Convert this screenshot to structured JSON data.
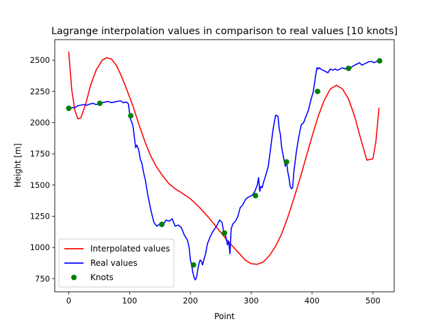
{
  "chart_data": {
    "type": "line",
    "title": "Lagrange interpolation values in comparison to real values [10 knots]",
    "xlabel": "Point",
    "ylabel": "Height [m]",
    "xlim": [
      -23,
      535
    ],
    "ylim": [
      645,
      2665
    ],
    "x_ticks": [
      0,
      100,
      200,
      300,
      400,
      500
    ],
    "y_ticks": [
      750,
      1000,
      1250,
      1500,
      1750,
      2000,
      2250,
      2500
    ],
    "legend_position": "lower-left",
    "series": [
      {
        "name": "Interpolated values",
        "color": "#ff0000",
        "style": "line",
        "x": [
          0,
          5,
          10,
          15,
          20,
          28,
          36,
          45,
          55,
          62,
          70,
          78,
          86,
          95,
          105,
          115,
          125,
          135,
          145,
          155,
          165,
          175,
          185,
          200,
          215,
          230,
          245,
          260,
          275,
          290,
          300,
          310,
          320,
          330,
          340,
          350,
          360,
          370,
          380,
          390,
          400,
          410,
          420,
          430,
          440,
          450,
          460,
          470,
          480,
          490,
          500,
          505,
          510
        ],
        "y": [
          2570,
          2260,
          2100,
          2030,
          2040,
          2150,
          2300,
          2420,
          2500,
          2520,
          2510,
          2460,
          2380,
          2270,
          2140,
          1990,
          1850,
          1730,
          1640,
          1570,
          1510,
          1470,
          1440,
          1390,
          1320,
          1240,
          1150,
          1060,
          980,
          900,
          870,
          865,
          885,
          935,
          1010,
          1110,
          1240,
          1390,
          1550,
          1720,
          1890,
          2050,
          2180,
          2270,
          2300,
          2270,
          2190,
          2050,
          1870,
          1700,
          1710,
          1850,
          2120
        ]
      },
      {
        "name": "Real values",
        "color": "#0000ff",
        "style": "line",
        "x": [
          0,
          5,
          10,
          15,
          20,
          25,
          30,
          35,
          40,
          45,
          50,
          55,
          60,
          65,
          70,
          75,
          80,
          85,
          90,
          95,
          98,
          100,
          102,
          104,
          106,
          108,
          110,
          112,
          115,
          118,
          120,
          123,
          126,
          130,
          135,
          140,
          145,
          150,
          155,
          160,
          165,
          170,
          175,
          180,
          185,
          190,
          195,
          198,
          200,
          202,
          204,
          206,
          208,
          210,
          212,
          214,
          216,
          218,
          220,
          222,
          225,
          228,
          232,
          236,
          240,
          244,
          248,
          252,
          255,
          258,
          261,
          263,
          265,
          267,
          270,
          274,
          278,
          282,
          286,
          290,
          294,
          298,
          302,
          306,
          310,
          312,
          314,
          316,
          318,
          320,
          324,
          328,
          332,
          336,
          340,
          344,
          346,
          348,
          350,
          352,
          354,
          356,
          358,
          360,
          362,
          364,
          366,
          368,
          370,
          374,
          378,
          382,
          386,
          390,
          394,
          398,
          402,
          406,
          408,
          410,
          412,
          414,
          418,
          422,
          426,
          430,
          434,
          438,
          442,
          446,
          450,
          454,
          458,
          462,
          466,
          470,
          474,
          478,
          482,
          486,
          490,
          494,
          498,
          502,
          506,
          510
        ],
        "y": [
          2110,
          2120,
          2120,
          2135,
          2140,
          2145,
          2140,
          2150,
          2155,
          2145,
          2150,
          2160,
          2165,
          2170,
          2160,
          2165,
          2170,
          2175,
          2160,
          2165,
          2150,
          2080,
          2020,
          2000,
          1960,
          1880,
          1800,
          1820,
          1780,
          1700,
          1680,
          1600,
          1540,
          1420,
          1300,
          1200,
          1170,
          1190,
          1180,
          1220,
          1210,
          1230,
          1170,
          1180,
          1160,
          1100,
          1060,
          1000,
          900,
          860,
          800,
          760,
          740,
          760,
          820,
          870,
          900,
          890,
          860,
          900,
          950,
          1030,
          1080,
          1120,
          1150,
          1180,
          1220,
          1200,
          1120,
          1090,
          1020,
          1050,
          950,
          1150,
          1190,
          1210,
          1250,
          1320,
          1340,
          1380,
          1400,
          1410,
          1420,
          1450,
          1500,
          1560,
          1450,
          1490,
          1480,
          1520,
          1580,
          1650,
          1800,
          1950,
          2060,
          2050,
          1950,
          1900,
          1800,
          1750,
          1700,
          1650,
          1690,
          1610,
          1560,
          1490,
          1470,
          1480,
          1600,
          1760,
          1880,
          1980,
          2000,
          2050,
          2100,
          2180,
          2250,
          2380,
          2440,
          2430,
          2440,
          2430,
          2420,
          2410,
          2400,
          2430,
          2420,
          2430,
          2420,
          2430,
          2440,
          2430,
          2440,
          2430,
          2450,
          2460,
          2470,
          2480,
          2460,
          2470,
          2480,
          2490,
          2490,
          2480,
          2490,
          2500
        ]
      },
      {
        "name": "Knots",
        "color": "#008000",
        "style": "scatter",
        "x": [
          0,
          51,
          102,
          153,
          205,
          256,
          307,
          358,
          409,
          460,
          511
        ],
        "y": [
          2115,
          2155,
          2055,
          1185,
          860,
          1115,
          1415,
          1685,
          2250,
          2435,
          2495
        ]
      }
    ]
  }
}
